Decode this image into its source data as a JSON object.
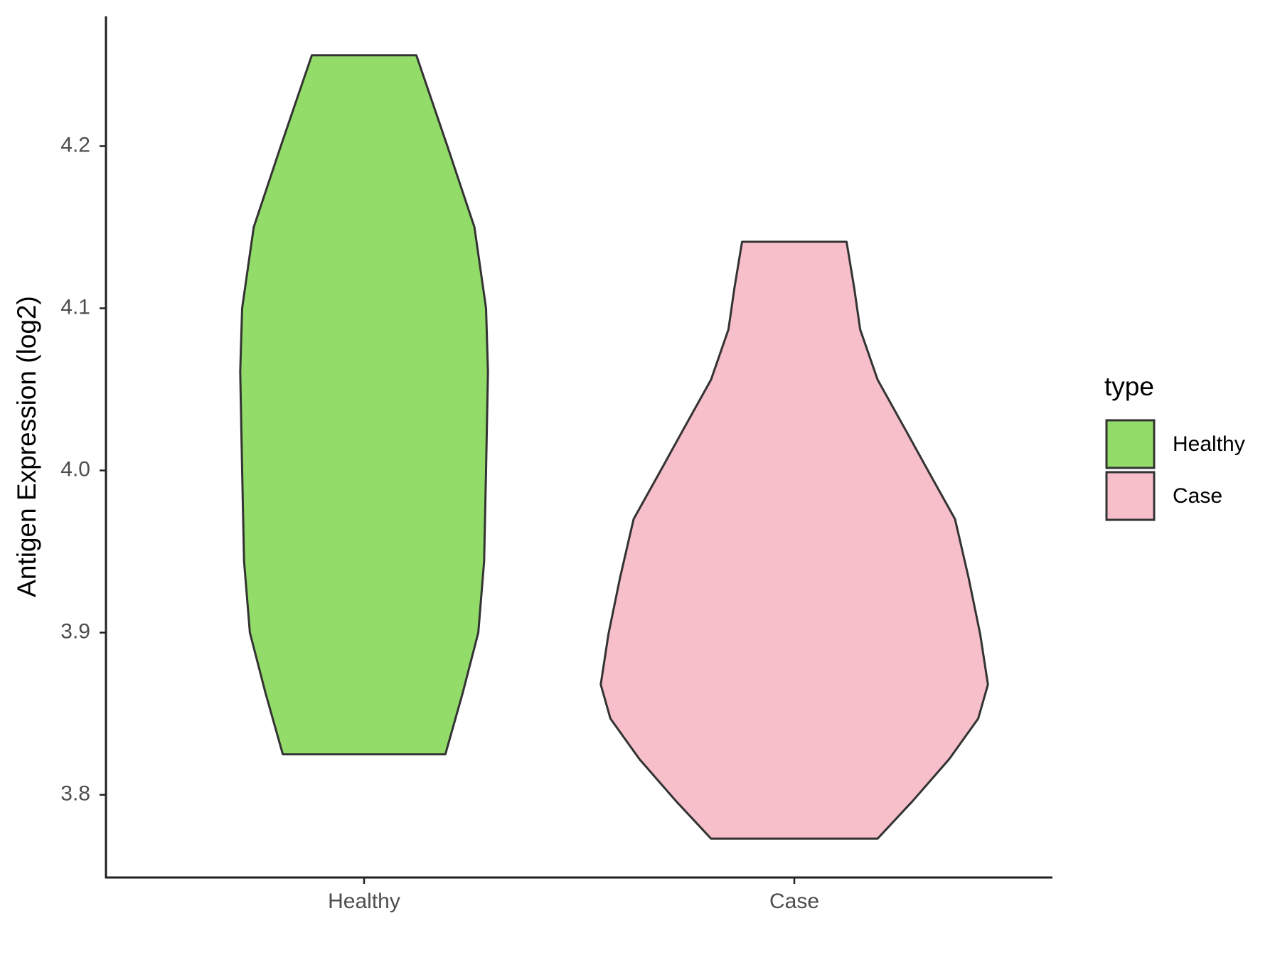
{
  "chart_data": {
    "type": "violin",
    "y_label": "Antigen Expression (log2)",
    "categories": [
      "Healthy",
      "Case"
    ],
    "ylim": [
      3.749,
      4.28
    ],
    "yticks": [
      3.8,
      3.9,
      {
        "value": 4.0,
        "label": "4.0"
      },
      4.1,
      4.2
    ],
    "legend": {
      "title": "type",
      "position": "right"
    },
    "series": [
      {
        "name": "Healthy",
        "color": "#93dc6a",
        "y": [
          4.256,
          4.2,
          4.15,
          4.1,
          4.061,
          4.0,
          3.944,
          3.9,
          3.863,
          3.825
        ],
        "density": [
          0.27,
          0.43,
          0.57,
          0.63,
          0.64,
          0.63,
          0.62,
          0.59,
          0.51,
          0.42
        ]
      },
      {
        "name": "Case",
        "color": "#f7bfca",
        "y": [
          4.141,
          4.112,
          4.087,
          4.056,
          4.026,
          4.0,
          3.97,
          3.934,
          3.899,
          3.868,
          3.847,
          3.822,
          3.796,
          3.773
        ],
        "density": [
          0.27,
          0.31,
          0.34,
          0.43,
          0.57,
          0.69,
          0.83,
          0.9,
          0.96,
          1.0,
          0.95,
          0.8,
          0.61,
          0.43
        ]
      }
    ]
  }
}
